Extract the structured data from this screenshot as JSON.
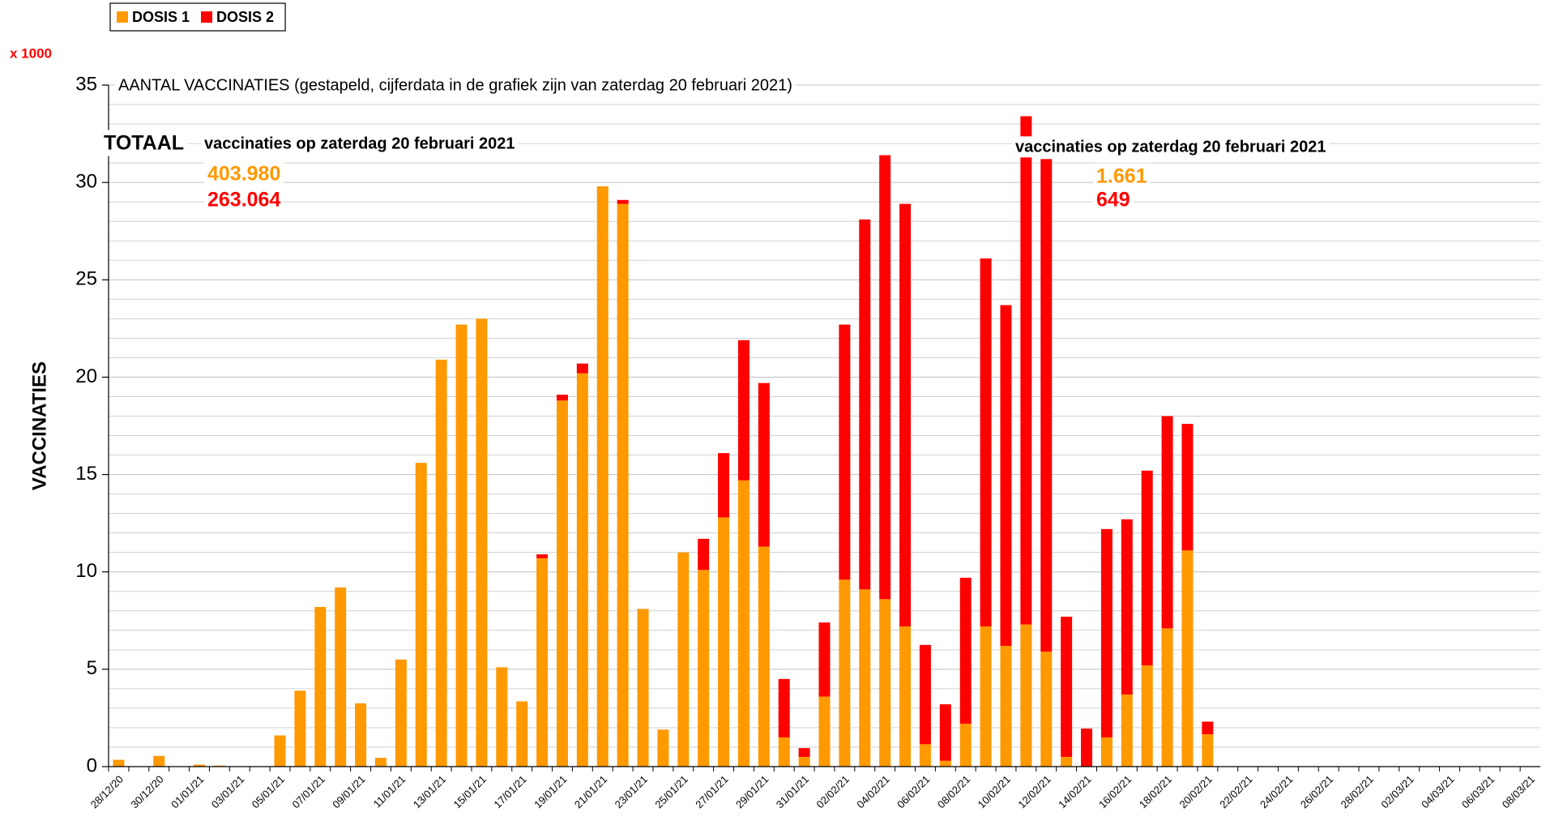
{
  "chart_data": {
    "type": "bar",
    "stacked": true,
    "title": "AANTAL VACCINATIES (gestapeld, cijferdata in de grafiek zijn van zaterdag 20 februari 2021)",
    "y_label": "VACCINATIES",
    "y_unit": "x 1000",
    "categories": [
      "28/12/20",
      null,
      "30/12/20",
      null,
      "01/01/21",
      null,
      "03/01/21",
      null,
      "05/01/21",
      null,
      "07/01/21",
      null,
      "09/01/21",
      null,
      "11/01/21",
      null,
      "13/01/21",
      null,
      "15/01/21",
      null,
      "17/01/21",
      null,
      "19/01/21",
      null,
      "21/01/21",
      null,
      "23/01/21",
      null,
      "25/01/21",
      null,
      "27/01/21",
      null,
      "29/01/21",
      null,
      "31/01/21",
      null,
      "02/02/21",
      null,
      "04/02/21",
      null,
      "06/02/21",
      null,
      "08/02/21",
      null,
      "10/02/21",
      null,
      "12/02/21",
      null,
      "14/02/21",
      null,
      "16/02/21",
      null,
      "18/02/21",
      null,
      "20/02/21",
      null,
      "22/02/21",
      null,
      "24/02/21",
      null,
      "26/02/21",
      null,
      "28/02/21",
      null,
      "02/03/21",
      null,
      "04/03/21",
      null,
      "06/03/21",
      null,
      "08/03/21"
    ],
    "series": [
      {
        "name": "DOSIS 1",
        "color": "#ff9900",
        "values": [
          0.35,
          0,
          0.55,
          0,
          0.1,
          0.05,
          0,
          0,
          1.6,
          3.9,
          8.2,
          9.2,
          3.25,
          0.45,
          5.5,
          15.6,
          20.9,
          22.7,
          23.0,
          5.1,
          3.35,
          10.7,
          18.8,
          20.2,
          29.8,
          28.9,
          8.1,
          1.9,
          11.0,
          10.1,
          12.8,
          14.7,
          11.3,
          1.5,
          0.5,
          3.6,
          9.6,
          9.1,
          8.6,
          7.2,
          1.15,
          0.3,
          2.2,
          7.2,
          6.2,
          7.3,
          5.9,
          0.5,
          0,
          1.5,
          3.7,
          5.2,
          7.1,
          11.1,
          1.661,
          0,
          0,
          0,
          0,
          0,
          0,
          0,
          0,
          0,
          0,
          0,
          0,
          0,
          0,
          0,
          0
        ]
      },
      {
        "name": "DOSIS 2",
        "color": "#ff0000",
        "values": [
          0,
          0,
          0,
          0,
          0,
          0,
          0,
          0,
          0,
          0,
          0,
          0,
          0,
          0,
          0,
          0,
          0,
          0,
          0,
          0,
          0,
          0.2,
          0.3,
          0.5,
          0,
          0.2,
          0,
          0,
          0,
          1.6,
          3.3,
          7.2,
          8.4,
          3.0,
          0.45,
          3.8,
          13.1,
          19.0,
          22.8,
          21.7,
          5.1,
          2.9,
          7.5,
          18.9,
          17.5,
          26.1,
          25.3,
          7.2,
          1.95,
          10.7,
          9.0,
          10.0,
          10.9,
          6.5,
          0.649,
          0,
          0,
          0,
          0,
          0,
          0,
          0,
          0,
          0,
          0,
          0,
          0,
          0,
          0,
          0,
          0
        ]
      }
    ],
    "ylim": [
      0,
      35
    ],
    "yticks": [
      0,
      5,
      10,
      15,
      20,
      25,
      30,
      35
    ],
    "grid": true,
    "minor_grid_step": 1,
    "legend": "top-left",
    "annotations": [
      {
        "text": "TOTAAL",
        "color": "#000000"
      },
      {
        "text": "vaccinaties op zaterdag 20 februari 2021",
        "color": "#000000"
      },
      {
        "text": "403.980",
        "color": "#ff9900"
      },
      {
        "text": "263.064",
        "color": "#ff0000"
      },
      {
        "text": "vaccinaties op zaterdag 20 februari 2021",
        "color": "#000000"
      },
      {
        "text": "1.661",
        "color": "#ff9900"
      },
      {
        "text": "649",
        "color": "#ff0000"
      }
    ]
  }
}
